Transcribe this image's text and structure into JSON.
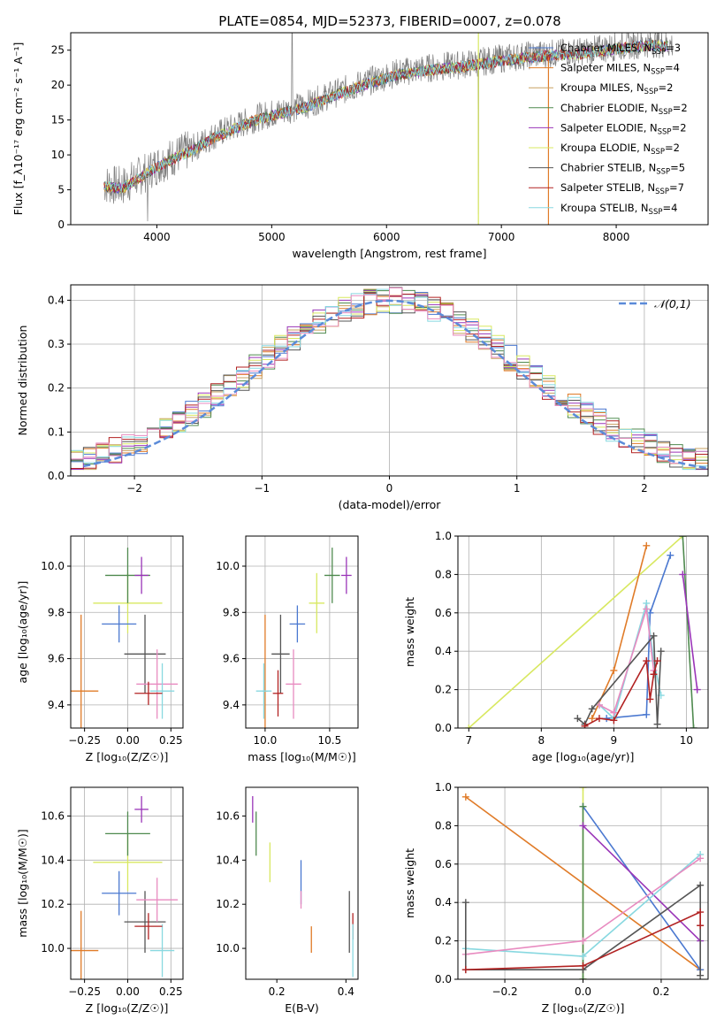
{
  "figure_title": "PLATE=0854, MJD=52373, FIBERID=0007, z=0.078",
  "colors": {
    "chabrier_miles": "#4a78d0",
    "salpeter_miles": "#e07b28",
    "kroupa_miles": "#c8a060",
    "chabrier_elodie": "#4f8a4f",
    "salpeter_elodie": "#9a35b8",
    "kroupa_elodie": "#d8e860",
    "chabrier_stelib": "#555555",
    "salpeter_stelib": "#b22222",
    "kroupa_stelib": "#88d8e0",
    "data": "#808080",
    "normal": "#5b8bd9",
    "pink": "#e88bc0"
  },
  "chart_data": [
    {
      "id": "spectrum",
      "type": "line",
      "xlabel": "wavelength [Angstrom, rest frame]",
      "ylabel": "Flux [f_λ10⁻¹⁷ erg cm⁻² s⁻¹ A⁻¹]",
      "xlim": [
        3250,
        8800
      ],
      "ylim": [
        0,
        27.5
      ],
      "xticks": [
        4000,
        5000,
        6000,
        7000,
        8000
      ],
      "yticks": [
        0,
        5,
        10,
        15,
        20,
        25
      ],
      "grid": false,
      "legend_position": "upper right",
      "series": [
        {
          "name": "Chabrier MILES, N_SSP=3",
          "color_key": "chabrier_miles"
        },
        {
          "name": "Salpeter MILES, N_SSP=4",
          "color_key": "salpeter_miles"
        },
        {
          "name": "Kroupa MILES, N_SSP=2",
          "color_key": "kroupa_miles"
        },
        {
          "name": "Chabrier ELODIE, N_SSP=2",
          "color_key": "chabrier_elodie"
        },
        {
          "name": "Salpeter ELODIE, N_SSP=2",
          "color_key": "salpeter_elodie"
        },
        {
          "name": "Kroupa ELODIE, N_SSP=2",
          "color_key": "kroupa_elodie"
        },
        {
          "name": "Chabrier STELIB, N_SSP=5",
          "color_key": "chabrier_stelib"
        },
        {
          "name": "Salpeter STELIB, N_SSP=7",
          "color_key": "salpeter_stelib"
        },
        {
          "name": "Kroupa STELIB, N_SSP=4",
          "color_key": "kroupa_stelib"
        }
      ],
      "continuum": {
        "x": [
          3550,
          3700,
          3850,
          4000,
          4150,
          4300,
          4500,
          4700,
          4900,
          5100,
          5300,
          5500,
          5800,
          6100,
          6400,
          6700,
          7000,
          7200,
          7400,
          7700,
          8000,
          8300,
          8500
        ],
        "y": [
          5.8,
          5.5,
          7.0,
          8.5,
          9.8,
          10.8,
          12.8,
          14.2,
          15.5,
          16.3,
          17.2,
          18.5,
          20.3,
          21.8,
          22.5,
          23.0,
          23.8,
          24.2,
          24.5,
          24.8,
          25.5,
          26.0,
          25.8
        ]
      }
    },
    {
      "id": "residuals",
      "type": "bar",
      "xlabel": "(data-model)/error",
      "ylabel": "Normed distribution",
      "xlim": [
        -2.5,
        2.5
      ],
      "ylim": [
        0,
        0.435
      ],
      "xticks": [
        -2,
        -1,
        0,
        1,
        2
      ],
      "yticks": [
        0.0,
        0.1,
        0.2,
        0.3,
        0.4
      ],
      "grid": true,
      "legend": "𝒩(0,1)",
      "legend_position": "upper right"
    },
    {
      "id": "z_age",
      "type": "scatter",
      "xlabel": "Z [log₁₀(Z/Z☉)]",
      "ylabel": "age  [log₁₀(age/yr)]",
      "xlim": [
        -0.33,
        0.32
      ],
      "ylim": [
        9.3,
        10.13
      ],
      "xticks": [
        -0.25,
        0.0,
        0.25
      ],
      "xticklabels": [
        "−0.25",
        "0.00",
        "0.25"
      ],
      "yticks": [
        9.4,
        9.6,
        9.8,
        10.0
      ],
      "grid": true,
      "points": [
        {
          "c": "salpeter_miles",
          "x": -0.27,
          "y": 9.46,
          "ex": 0.1,
          "ey": 0.33
        },
        {
          "c": "kroupa_elodie",
          "x": 0.0,
          "y": 9.84,
          "ex": 0.2,
          "ey": 0.13
        },
        {
          "c": "chabrier_miles",
          "x": -0.05,
          "y": 9.75,
          "ex": 0.1,
          "ey": 0.08
        },
        {
          "c": "chabrier_elodie",
          "x": 0.0,
          "y": 9.96,
          "ex": 0.13,
          "ey": 0.12
        },
        {
          "c": "salpeter_elodie",
          "x": 0.08,
          "y": 9.96,
          "ex": 0.04,
          "ey": 0.08
        },
        {
          "c": "chabrier_stelib",
          "x": 0.1,
          "y": 9.62,
          "ex": 0.12,
          "ey": 0.17
        },
        {
          "c": "pink",
          "x": 0.17,
          "y": 9.49,
          "ex": 0.12,
          "ey": 0.15
        },
        {
          "c": "kroupa_stelib",
          "x": 0.2,
          "y": 9.46,
          "ex": 0.07,
          "ey": 0.12
        },
        {
          "c": "salpeter_stelib",
          "x": 0.12,
          "y": 9.45,
          "ex": 0.08,
          "ey": 0.05
        }
      ]
    },
    {
      "id": "mass_age",
      "type": "scatter",
      "xlabel": "mass [log₁₀(M/M☉)]",
      "ylabel": "",
      "xlim": [
        9.85,
        10.72
      ],
      "ylim": [
        9.3,
        10.13
      ],
      "xticks": [
        10.0,
        10.5
      ],
      "xticklabels": [
        "10.0",
        "10.5"
      ],
      "yticks": [
        9.4,
        9.6,
        9.8,
        10.0
      ],
      "grid": true,
      "points": [
        {
          "c": "salpeter_miles",
          "x": 10.0,
          "y": 9.46,
          "ex": 0.02,
          "ey": 0.33
        },
        {
          "c": "kroupa_elodie",
          "x": 10.4,
          "y": 9.84,
          "ex": 0.06,
          "ey": 0.13
        },
        {
          "c": "chabrier_miles",
          "x": 10.25,
          "y": 9.75,
          "ex": 0.06,
          "ey": 0.08
        },
        {
          "c": "chabrier_elodie",
          "x": 10.52,
          "y": 9.96,
          "ex": 0.06,
          "ey": 0.12
        },
        {
          "c": "salpeter_elodie",
          "x": 10.63,
          "y": 9.96,
          "ex": 0.04,
          "ey": 0.08
        },
        {
          "c": "chabrier_stelib",
          "x": 10.12,
          "y": 9.62,
          "ex": 0.07,
          "ey": 0.17
        },
        {
          "c": "pink",
          "x": 10.22,
          "y": 9.49,
          "ex": 0.06,
          "ey": 0.15
        },
        {
          "c": "kroupa_stelib",
          "x": 9.99,
          "y": 9.46,
          "ex": 0.06,
          "ey": 0.12
        },
        {
          "c": "salpeter_stelib",
          "x": 10.1,
          "y": 9.45,
          "ex": 0.04,
          "ey": 0.1
        }
      ]
    },
    {
      "id": "age_weight",
      "type": "line",
      "xlabel": "age  [log₁₀(age/yr)]",
      "ylabel": "mass weight",
      "xlim": [
        6.85,
        10.3
      ],
      "ylim": [
        0,
        1.0
      ],
      "xticks": [
        7,
        8,
        9,
        10
      ],
      "xticklabels": [
        "7",
        "8",
        "9",
        "10"
      ],
      "yticks": [
        0.0,
        0.2,
        0.4,
        0.6,
        0.8,
        1.0
      ],
      "grid": true,
      "series": [
        {
          "c": "kroupa_elodie",
          "x": [
            7.0,
            9.95
          ],
          "y": [
            0.0,
            1.0
          ]
        },
        {
          "c": "salpeter_miles",
          "x": [
            8.7,
            9.0,
            9.45
          ],
          "y": [
            0.05,
            0.3,
            0.95
          ]
        },
        {
          "c": "chabrier_miles",
          "x": [
            8.9,
            9.45,
            9.5,
            9.78
          ],
          "y": [
            0.05,
            0.07,
            0.6,
            0.9
          ]
        },
        {
          "c": "chabrier_elodie",
          "x": [
            9.95,
            10.1
          ],
          "y": [
            1.0,
            0.0
          ]
        },
        {
          "c": "salpeter_elodie",
          "x": [
            9.95,
            10.15
          ],
          "y": [
            0.8,
            0.2
          ]
        },
        {
          "c": "kroupa_stelib",
          "x": [
            8.8,
            9.0,
            9.45,
            9.55,
            9.65
          ],
          "y": [
            0.12,
            0.05,
            0.65,
            0.35,
            0.17
          ]
        },
        {
          "c": "pink",
          "x": [
            8.8,
            9.0,
            9.45,
            9.55
          ],
          "y": [
            0.12,
            0.08,
            0.62,
            0.3
          ]
        },
        {
          "c": "chabrier_stelib",
          "x": [
            8.5,
            8.6,
            8.7,
            9.55,
            9.6,
            9.65
          ],
          "y": [
            0.05,
            0.02,
            0.1,
            0.48,
            0.02,
            0.4
          ]
        },
        {
          "c": "salpeter_stelib",
          "x": [
            8.6,
            8.8,
            9.0,
            9.45,
            9.5,
            9.55,
            9.6
          ],
          "y": [
            0.01,
            0.05,
            0.04,
            0.35,
            0.15,
            0.28,
            0.35
          ]
        }
      ]
    },
    {
      "id": "z_mass",
      "type": "scatter",
      "xlabel": "Z [log₁₀(Z/Z☉)]",
      "ylabel": "mass [log₁₀(M/M☉)]",
      "xlim": [
        -0.33,
        0.32
      ],
      "ylim": [
        9.86,
        10.73
      ],
      "xticks": [
        -0.25,
        0.0,
        0.25
      ],
      "xticklabels": [
        "−0.25",
        "0.00",
        "0.25"
      ],
      "yticks": [
        10.0,
        10.2,
        10.4,
        10.6
      ],
      "grid": true,
      "points": [
        {
          "c": "salpeter_miles",
          "x": -0.27,
          "y": 9.99,
          "ex": 0.1,
          "ey": 0.18
        },
        {
          "c": "kroupa_elodie",
          "x": 0.0,
          "y": 10.39,
          "ex": 0.2,
          "ey": 0.13
        },
        {
          "c": "chabrier_miles",
          "x": -0.05,
          "y": 10.25,
          "ex": 0.1,
          "ey": 0.1
        },
        {
          "c": "chabrier_elodie",
          "x": 0.0,
          "y": 10.52,
          "ex": 0.13,
          "ey": 0.1
        },
        {
          "c": "salpeter_elodie",
          "x": 0.08,
          "y": 10.63,
          "ex": 0.04,
          "ey": 0.06
        },
        {
          "c": "chabrier_stelib",
          "x": 0.1,
          "y": 10.12,
          "ex": 0.12,
          "ey": 0.14
        },
        {
          "c": "pink",
          "x": 0.17,
          "y": 10.22,
          "ex": 0.12,
          "ey": 0.1
        },
        {
          "c": "kroupa_stelib",
          "x": 0.2,
          "y": 9.99,
          "ex": 0.07,
          "ey": 0.12
        },
        {
          "c": "salpeter_stelib",
          "x": 0.12,
          "y": 10.1,
          "ex": 0.08,
          "ey": 0.06
        }
      ]
    },
    {
      "id": "ebv_mass",
      "type": "scatter",
      "xlabel": "E(B-V)",
      "ylabel": "",
      "xlim": [
        0.11,
        0.435
      ],
      "ylim": [
        9.86,
        10.73
      ],
      "xticks": [
        0.2,
        0.4
      ],
      "xticklabels": [
        "0.2",
        "0.4"
      ],
      "yticks": [
        10.0,
        10.2,
        10.4,
        10.6
      ],
      "grid": false,
      "points": [
        {
          "c": "salpeter_elodie",
          "x": 0.13,
          "y": 10.63,
          "ex": 0.0,
          "ey": 0.06
        },
        {
          "c": "chabrier_elodie",
          "x": 0.14,
          "y": 10.52,
          "ex": 0.0,
          "ey": 0.1
        },
        {
          "c": "kroupa_elodie",
          "x": 0.18,
          "y": 10.39,
          "ex": 0.0,
          "ey": 0.09
        },
        {
          "c": "chabrier_miles",
          "x": 0.27,
          "y": 10.3,
          "ex": 0.0,
          "ey": 0.1
        },
        {
          "c": "pink",
          "x": 0.27,
          "y": 10.22,
          "ex": 0.0,
          "ey": 0.04
        },
        {
          "c": "salpeter_miles",
          "x": 0.3,
          "y": 10.04,
          "ex": 0.0,
          "ey": 0.06
        },
        {
          "c": "chabrier_stelib",
          "x": 0.41,
          "y": 10.12,
          "ex": 0.0,
          "ey": 0.14
        },
        {
          "c": "salpeter_stelib",
          "x": 0.42,
          "y": 10.1,
          "ex": 0.0,
          "ey": 0.06
        },
        {
          "c": "kroupa_stelib",
          "x": 0.42,
          "y": 9.99,
          "ex": 0.0,
          "ey": 0.12
        }
      ]
    },
    {
      "id": "z_weight",
      "type": "line",
      "xlabel": "Z [log₁₀(Z/Z☉)]",
      "ylabel": "mass weight",
      "xlim": [
        -0.32,
        0.32
      ],
      "ylim": [
        0,
        1.0
      ],
      "xticks": [
        -0.2,
        0.0,
        0.2
      ],
      "xticklabels": [
        "−0.2",
        "0.0",
        "0.2"
      ],
      "yticks": [
        0.0,
        0.2,
        0.4,
        0.6,
        0.8,
        1.0
      ],
      "grid": true,
      "series": [
        {
          "c": "kroupa_elodie",
          "x": [
            0.0,
            0.0
          ],
          "y": [
            0.0,
            1.0
          ]
        },
        {
          "c": "salpeter_miles",
          "x": [
            -0.3,
            0.3
          ],
          "y": [
            0.95,
            0.05
          ]
        },
        {
          "c": "chabrier_miles",
          "x": [
            0.0,
            0.3
          ],
          "y": [
            0.9,
            0.05
          ]
        },
        {
          "c": "chabrier_elodie",
          "x": [
            0.0,
            0.0
          ],
          "y": [
            0.9,
            0.0
          ]
        },
        {
          "c": "salpeter_elodie",
          "x": [
            0.0,
            0.3
          ],
          "y": [
            0.8,
            0.2
          ]
        },
        {
          "c": "kroupa_stelib",
          "x": [
            -0.3,
            0.0,
            0.3
          ],
          "y": [
            0.16,
            0.12,
            0.65
          ]
        },
        {
          "c": "pink",
          "x": [
            -0.3,
            0.0,
            0.3
          ],
          "y": [
            0.13,
            0.2,
            0.63
          ]
        },
        {
          "c": "chabrier_stelib",
          "x": [
            -0.3,
            -0.3,
            0.0,
            0.3,
            0.3
          ],
          "y": [
            0.4,
            0.05,
            0.05,
            0.49,
            0.02
          ]
        },
        {
          "c": "salpeter_stelib",
          "x": [
            -0.3,
            0.0,
            0.3,
            0.3
          ],
          "y": [
            0.05,
            0.07,
            0.35,
            0.28
          ]
        }
      ]
    }
  ]
}
